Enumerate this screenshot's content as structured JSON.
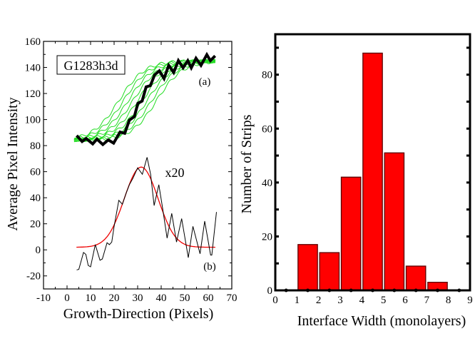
{
  "chart_data": [
    {
      "type": "line",
      "panel": "left",
      "title": "",
      "xlabel": "Growth-Direction (Pixels)",
      "ylabel": "Average Pixel Intensity",
      "xlim": [
        -10,
        70
      ],
      "ylim": [
        -30,
        160
      ],
      "xticks": [
        -10,
        0,
        10,
        20,
        30,
        40,
        50,
        60,
        70
      ],
      "yticks": [
        -20,
        0,
        20,
        40,
        60,
        80,
        100,
        120,
        140,
        160
      ],
      "grid": false,
      "legend_box": "G1283h3d",
      "annotations": [
        "(a)",
        "x20",
        "(b)"
      ],
      "series": [
        {
          "name": "green profiles (a)",
          "color": "#22dd22",
          "kind": "sigmoid-family",
          "low": 84,
          "high": 145,
          "midpoints": [
            22,
            24,
            26,
            28,
            30,
            32,
            34,
            36,
            38
          ],
          "width": 5.5,
          "x_range": [
            3,
            63
          ]
        },
        {
          "name": "average profile (a)",
          "color": "#000000",
          "x": [
            4.1,
            6.4,
            8.1,
            10.9,
            12.7,
            15.2,
            17.5,
            19.8,
            22.5,
            24.5,
            26.5,
            28.6,
            30.1,
            31.9,
            33.6,
            35.4,
            37.2,
            39.2,
            41.2,
            43.2,
            45.3,
            47.3,
            49.3,
            51.3,
            52.8,
            54.8,
            56.9,
            59.4,
            60.9,
            62.9
          ],
          "y": [
            87.7,
            83.2,
            85.5,
            81.3,
            85,
            80.8,
            84.4,
            81.9,
            90.4,
            89.5,
            99.6,
            102.3,
            112.4,
            114.2,
            125.1,
            126,
            134.3,
            137.4,
            131.5,
            141.6,
            136.1,
            145.2,
            139.7,
            145.2,
            139.7,
            147,
            141.6,
            149.8,
            145.2,
            148.9
          ]
        },
        {
          "name": "derivative x20 (b)",
          "color": "#000000",
          "x": [
            4.1,
            5,
            7,
            8,
            9,
            10,
            12,
            14,
            15,
            17,
            18,
            19,
            20,
            22,
            23.5,
            25,
            26.5,
            28,
            30,
            32,
            34,
            35.5,
            37,
            39,
            40.5,
            42.5,
            44.5,
            46.5,
            48.7,
            51.5,
            53.5,
            56.5,
            58.5,
            61,
            61.5,
            63.5
          ],
          "y": [
            -15.4,
            -15,
            -2,
            -3.5,
            -12,
            -13,
            4,
            -8,
            -7,
            5.5,
            4,
            6,
            18,
            38,
            35,
            43,
            50,
            55,
            63,
            58,
            71,
            58,
            34,
            50,
            33,
            9,
            28,
            6,
            24,
            -6,
            18,
            -3,
            22,
            -4,
            -4,
            29
          ]
        },
        {
          "name": "gaussian fit (b)",
          "color": "#ee0000",
          "kind": "gaussian",
          "baseline": 2,
          "peak": 63.5,
          "center": 31.5,
          "sigma": 7.2,
          "x_range": [
            4,
            63
          ]
        }
      ]
    },
    {
      "type": "bar",
      "panel": "right",
      "title": "",
      "xlabel": "Interface Width (monolayers)",
      "ylabel": "Number of Strips",
      "xlim": [
        0,
        9
      ],
      "ylim": [
        0,
        95
      ],
      "xticks": [
        0,
        1,
        2,
        3,
        4,
        5,
        6,
        7,
        8,
        9
      ],
      "yticks": [
        0,
        20,
        40,
        60,
        80
      ],
      "grid": false,
      "bar_color": "#ff0000",
      "bins": [
        [
          1,
          2
        ],
        [
          2,
          3
        ],
        [
          3,
          4
        ],
        [
          4,
          5
        ],
        [
          5,
          6
        ],
        [
          6,
          7
        ],
        [
          7,
          8
        ]
      ],
      "categories": [
        "1-2",
        "2-3",
        "3-4",
        "4-5",
        "5-6",
        "6-7",
        "7-8"
      ],
      "values": [
        17,
        14,
        42,
        88,
        51,
        9,
        3
      ]
    }
  ]
}
